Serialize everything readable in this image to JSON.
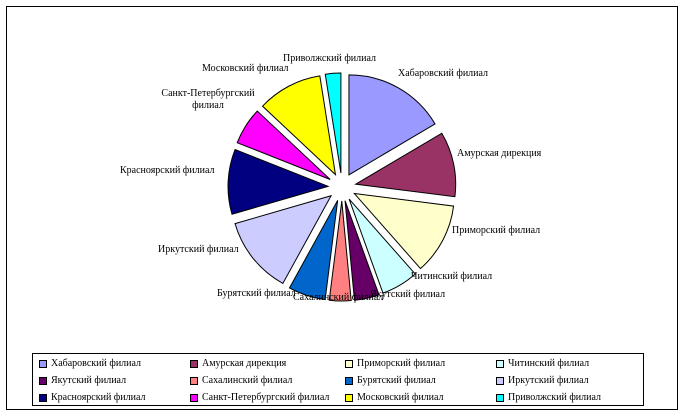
{
  "chart_data": {
    "type": "pie",
    "exploded": true,
    "title": "",
    "categories": [
      "Хабаровский филиал",
      "Амурская дирекция",
      "Приморский филиал",
      "Читинский филиал",
      "Якутский филиал",
      "Сахалинский филиал",
      "Бурятский филиал",
      "Иркутский филиал",
      "Красноярский филиал",
      "Санкт-Петербургский филиал",
      "Московский филиал",
      "Приволжский филиал"
    ],
    "labels_display": [
      [
        "Хабаровский филиал"
      ],
      [
        "Амурская дирекция"
      ],
      [
        "Приморский филиал"
      ],
      [
        "Читинский филиал"
      ],
      [
        "Якутский филиал"
      ],
      [
        "Сахалинский филиал"
      ],
      [
        "Бурятский филиал"
      ],
      [
        "Иркутский филиал"
      ],
      [
        "Красноярский филиал"
      ],
      [
        "Санкт-Петербургский",
        "филиал"
      ],
      [
        "Московский филиал"
      ],
      [
        "Приволжский филиал"
      ]
    ],
    "values": [
      16.5,
      10.5,
      11.5,
      6.0,
      4.0,
      3.5,
      6.0,
      12.5,
      10.5,
      6.0,
      10.5,
      2.5
    ],
    "colors": [
      "#9999FF",
      "#993366",
      "#FFFFCC",
      "#CCFFFF",
      "#660066",
      "#FF8080",
      "#0066CC",
      "#CCCCFF",
      "#000080",
      "#FF00FF",
      "#FFFF00",
      "#00FFFF"
    ],
    "legend": "bottom",
    "legend_columns": 4
  }
}
